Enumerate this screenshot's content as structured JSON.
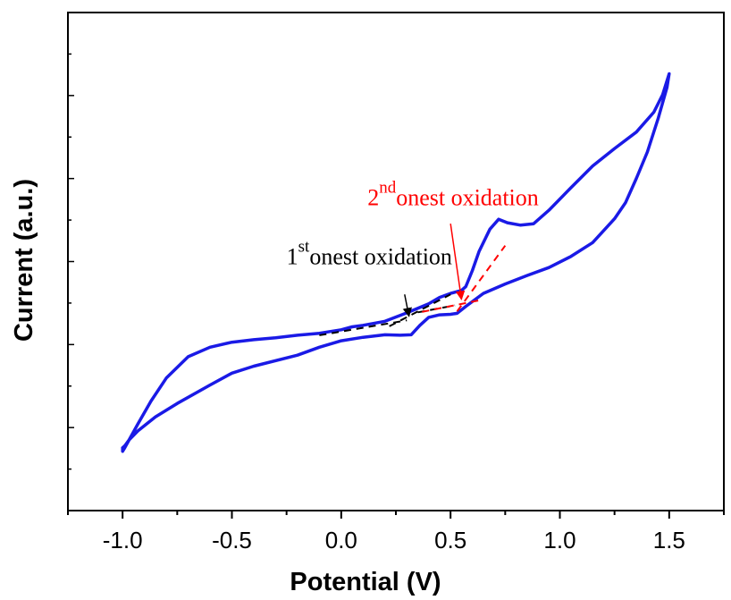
{
  "chart_data": {
    "type": "line",
    "xlabel": "Potential (V)",
    "ylabel": "Current (a.u.)",
    "xlim": [
      -1.25,
      1.75
    ],
    "ylim": [
      0,
      100
    ],
    "x_ticks": [
      -1.0,
      -0.5,
      0.0,
      0.5,
      1.0,
      1.5
    ],
    "x_tick_labels": [
      "-1.0",
      "-0.5",
      "0.0",
      "0.5",
      "1.0",
      "1.5"
    ],
    "y_tick_labels_shown": false,
    "grid": false,
    "line_color": "#1a1ae6",
    "series": [
      {
        "points": [
          [
            -1.0,
            12.6
          ],
          [
            -0.99,
            13.0
          ],
          [
            -0.97,
            14.2
          ],
          [
            -0.93,
            16.0
          ],
          [
            -0.85,
            18.8
          ],
          [
            -0.75,
            21.5
          ],
          [
            -0.6,
            25.2
          ],
          [
            -0.5,
            27.6
          ],
          [
            -0.4,
            29.0
          ],
          [
            -0.2,
            31.2
          ],
          [
            -0.1,
            32.8
          ],
          [
            0.0,
            34.1
          ],
          [
            0.1,
            34.8
          ],
          [
            0.2,
            35.3
          ],
          [
            0.27,
            35.2
          ],
          [
            0.32,
            35.3
          ],
          [
            0.36,
            37.2
          ],
          [
            0.4,
            38.8
          ],
          [
            0.45,
            39.3
          ],
          [
            0.5,
            39.4
          ],
          [
            0.53,
            39.6
          ],
          [
            0.57,
            41.0
          ],
          [
            0.65,
            43.6
          ],
          [
            0.75,
            45.5
          ],
          [
            0.85,
            47.2
          ],
          [
            0.95,
            48.8
          ],
          [
            1.05,
            51.0
          ],
          [
            1.15,
            53.8
          ],
          [
            1.25,
            58.6
          ],
          [
            1.3,
            61.8
          ],
          [
            1.35,
            66.7
          ],
          [
            1.4,
            72.0
          ],
          [
            1.45,
            78.8
          ],
          [
            1.49,
            85.0
          ],
          [
            1.5,
            87.7
          ],
          [
            1.47,
            83.5
          ],
          [
            1.43,
            80.0
          ],
          [
            1.35,
            76.0
          ],
          [
            1.25,
            72.7
          ],
          [
            1.15,
            69.2
          ],
          [
            1.05,
            64.8
          ],
          [
            0.95,
            60.3
          ],
          [
            0.88,
            57.6
          ],
          [
            0.82,
            57.3
          ],
          [
            0.76,
            57.8
          ],
          [
            0.72,
            58.5
          ],
          [
            0.68,
            56.5
          ],
          [
            0.63,
            52.0
          ],
          [
            0.6,
            48.2
          ],
          [
            0.57,
            45.0
          ],
          [
            0.55,
            44.2
          ],
          [
            0.5,
            43.6
          ],
          [
            0.45,
            42.8
          ],
          [
            0.4,
            41.5
          ],
          [
            0.3,
            39.7
          ],
          [
            0.2,
            38.0
          ],
          [
            0.1,
            37.2
          ],
          [
            0.05,
            36.9
          ],
          [
            0.0,
            36.3
          ],
          [
            -0.1,
            35.6
          ],
          [
            -0.2,
            35.2
          ],
          [
            -0.3,
            34.7
          ],
          [
            -0.4,
            34.3
          ],
          [
            -0.5,
            33.8
          ],
          [
            -0.6,
            32.8
          ],
          [
            -0.7,
            30.9
          ],
          [
            -0.8,
            26.6
          ],
          [
            -0.87,
            22.0
          ],
          [
            -0.93,
            17.4
          ],
          [
            -0.97,
            14.2
          ],
          [
            -0.99,
            12.6
          ],
          [
            -1.0,
            11.9
          ],
          [
            -1.0,
            12.6
          ]
        ]
      }
    ],
    "tangent_lines": [
      {
        "color": "#000000",
        "points": [
          [
            -0.1,
            35.2
          ],
          [
            0.3,
            38.2
          ]
        ]
      },
      {
        "color": "#000000",
        "points": [
          [
            0.22,
            37.0
          ],
          [
            0.5,
            43.4
          ]
        ]
      },
      {
        "color": "#000000",
        "points": [
          [
            0.35,
            39.8
          ],
          [
            0.52,
            41.2
          ]
        ]
      },
      {
        "color": "#ff0000",
        "points": [
          [
            0.37,
            39.9
          ],
          [
            0.63,
            42.2
          ]
        ]
      },
      {
        "color": "#ff0000",
        "points": [
          [
            0.53,
            40.0
          ],
          [
            0.75,
            53.2
          ]
        ]
      }
    ],
    "annotations": [
      {
        "color": "#000000",
        "main": "1",
        "sup": "st",
        "rest": "onest oxidation",
        "text_at": [
          -0.25,
          49.5
        ],
        "arrow_from": [
          0.29,
          43.4
        ],
        "arrow_to": [
          0.31,
          39.0
        ]
      },
      {
        "color": "#ff0000",
        "main": "2",
        "sup": "nd",
        "rest": "onest oxidation",
        "text_at": [
          0.12,
          61.3
        ],
        "arrow_from": [
          0.5,
          57.6
        ],
        "arrow_to": [
          0.55,
          42.4
        ]
      }
    ]
  }
}
